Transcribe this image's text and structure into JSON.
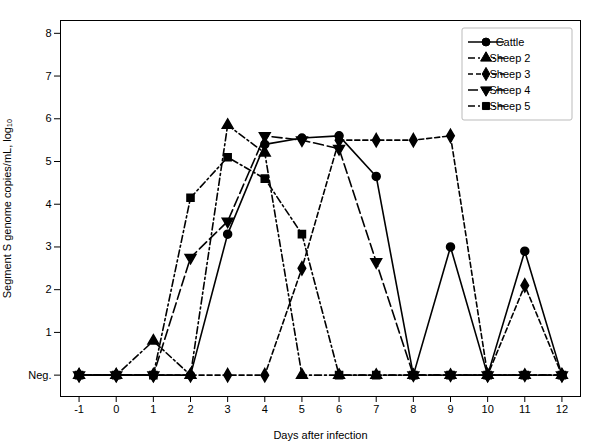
{
  "chart_data": {
    "type": "line",
    "xlabel": "Days after infection",
    "ylabel": "Segment S genome copies/mL, log₁₀",
    "x": [
      -1,
      0,
      1,
      2,
      3,
      4,
      5,
      6,
      7,
      8,
      9,
      10,
      11,
      12
    ],
    "xlim": [
      -1.5,
      12.5
    ],
    "xticks": [
      -1,
      0,
      1,
      2,
      3,
      4,
      5,
      6,
      7,
      8,
      9,
      10,
      11,
      12
    ],
    "ylim": [
      -0.5,
      8.3
    ],
    "yticks": [
      {
        "value": 0,
        "label": "Neg."
      },
      1,
      2,
      3,
      4,
      5,
      6,
      7,
      8
    ],
    "color": "black",
    "legend": "upper right",
    "grid": false,
    "series": [
      {
        "name": "Cattle",
        "marker": "circle",
        "line_style": "solid",
        "values": [
          0,
          0,
          0,
          0,
          3.3,
          5.4,
          5.55,
          5.6,
          4.65,
          0,
          3.0,
          0,
          2.9,
          0
        ]
      },
      {
        "name": "Sheep 2",
        "marker": "triangle",
        "line_style": "dashdot",
        "values": [
          0,
          0,
          0.8,
          0,
          5.85,
          5.2,
          0,
          0,
          0,
          0,
          0,
          0,
          0,
          0
        ]
      },
      {
        "name": "Sheep 3",
        "marker": "diamond",
        "line_style": "dashed",
        "values": [
          0,
          0,
          0,
          0,
          0,
          0,
          2.5,
          5.5,
          5.5,
          5.5,
          5.6,
          0,
          2.1,
          0
        ]
      },
      {
        "name": "Sheep 4",
        "marker": "triangle-down",
        "line_style": "longdash",
        "values": [
          0,
          0,
          0,
          2.75,
          3.6,
          5.6,
          5.5,
          5.3,
          2.65,
          0,
          0,
          0,
          0,
          0
        ]
      },
      {
        "name": "Sheep 5",
        "marker": "square",
        "line_style": "dashdot",
        "values": [
          0,
          0,
          0,
          4.15,
          5.1,
          4.6,
          3.3,
          0,
          0,
          0,
          0,
          0,
          0,
          0
        ]
      }
    ]
  }
}
